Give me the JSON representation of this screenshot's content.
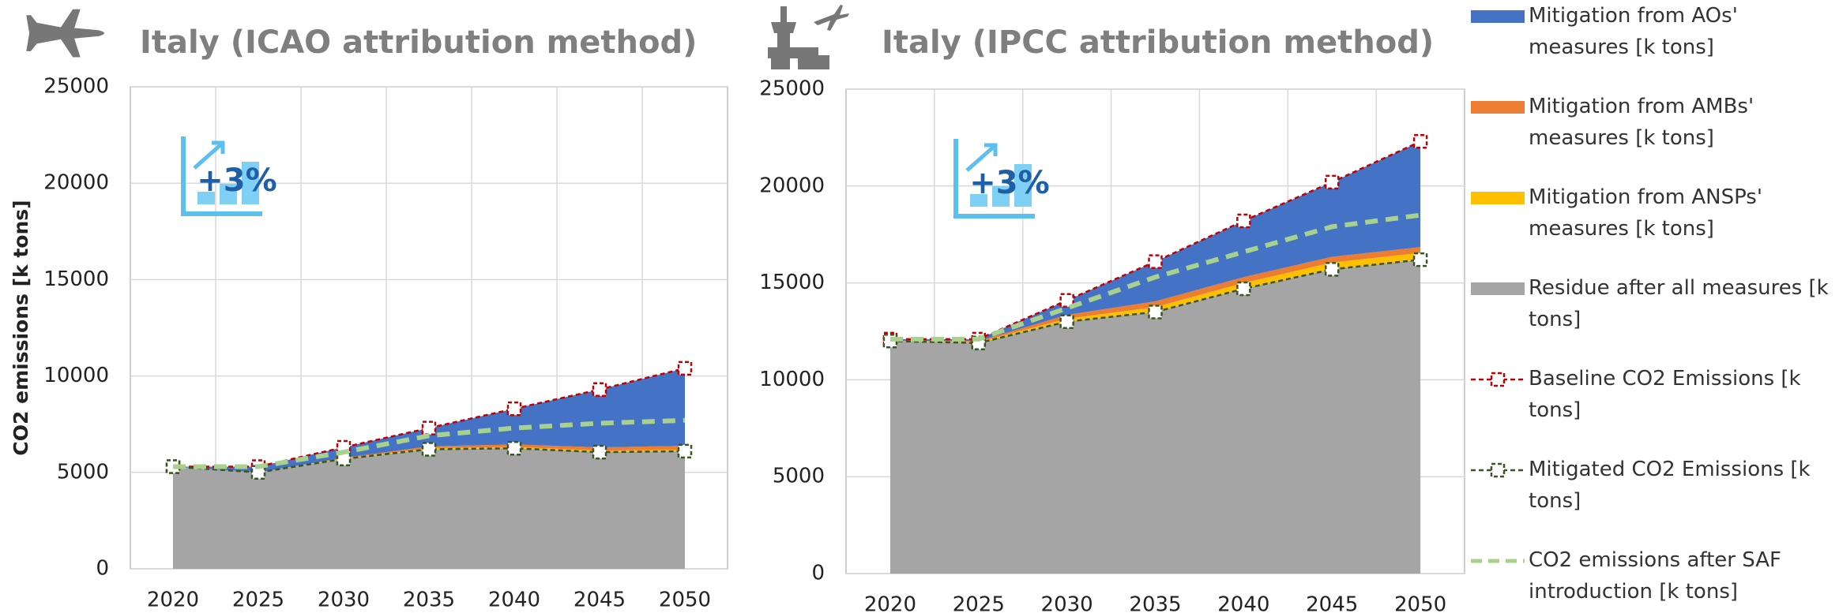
{
  "chart_data": [
    {
      "type": "area",
      "title": "Italy (ICAO attribution method)",
      "ylabel": "CO2 emissions [k tons]",
      "annotation": "+3%",
      "categories": [
        "2020",
        "2025",
        "2030",
        "2035",
        "2040",
        "2045",
        "2050"
      ],
      "ylim": [
        0,
        25000
      ],
      "yticks": [
        0,
        5000,
        10000,
        15000,
        20000,
        25000
      ],
      "grid": true,
      "series": [
        {
          "name": "Mitigation from AOs' measures [k tons]",
          "color": "#4472c4",
          "kind": "area",
          "values": [
            0,
            300,
            540,
            950,
            1850,
            3000,
            4020
          ]
        },
        {
          "name": "Mitigation from AMBs' measures [k tons]",
          "color": "#ed7d31",
          "kind": "area",
          "values": [
            0,
            0,
            30,
            90,
            130,
            170,
            200
          ]
        },
        {
          "name": "Mitigation from ANSPs' measures [k tons]",
          "color": "#ffc000",
          "kind": "area",
          "values": [
            0,
            0,
            30,
            60,
            70,
            80,
            80
          ]
        },
        {
          "name": "Residue after all measures [k tons]",
          "color": "#a5a5a5",
          "kind": "area",
          "values": [
            5300,
            5000,
            5700,
            6200,
            6250,
            6050,
            6100
          ]
        },
        {
          "name": "Baseline CO2 Emissions [k tons]",
          "color": "#c00000",
          "kind": "marker",
          "values": [
            5300,
            5300,
            6300,
            7300,
            8300,
            9300,
            10400
          ]
        },
        {
          "name": "Mitigated CO2 Emissions [k tons]",
          "color": "#375623",
          "kind": "marker",
          "values": [
            5300,
            5000,
            5700,
            6200,
            6250,
            6050,
            6100
          ]
        },
        {
          "name": "CO2 emissions after SAF introduction [k tons]",
          "color": "#a9d18e",
          "kind": "dash",
          "values": [
            5300,
            5300,
            6050,
            6900,
            7300,
            7550,
            7700
          ]
        }
      ]
    },
    {
      "type": "area",
      "title": "Italy (IPCC attribution method)",
      "annotation": "+3%",
      "categories": [
        "2020",
        "2025",
        "2030",
        "2035",
        "2040",
        "2045",
        "2050"
      ],
      "ylim": [
        0,
        25000
      ],
      "yticks": [
        0,
        5000,
        10000,
        15000,
        20000,
        25000
      ],
      "grid": true,
      "series": [
        {
          "color": "#4472c4",
          "kind": "area",
          "values": [
            100,
            100,
            750,
            2050,
            2900,
            3850,
            5450
          ]
        },
        {
          "color": "#ed7d31",
          "kind": "area",
          "values": [
            0,
            50,
            200,
            300,
            300,
            300,
            300
          ]
        },
        {
          "color": "#ffc000",
          "kind": "area",
          "values": [
            0,
            50,
            150,
            250,
            300,
            350,
            350
          ]
        },
        {
          "color": "#a5a5a5",
          "kind": "area",
          "values": [
            12000,
            11900,
            13000,
            13500,
            14700,
            15700,
            16200
          ]
        },
        {
          "color": "#c00000",
          "kind": "marker",
          "values": [
            12100,
            12100,
            14100,
            16100,
            18200,
            20200,
            22300
          ]
        },
        {
          "color": "#375623",
          "kind": "marker",
          "values": [
            12000,
            11900,
            13000,
            13500,
            14700,
            15700,
            16200
          ]
        },
        {
          "color": "#a9d18e",
          "kind": "dash",
          "values": [
            12100,
            12100,
            13700,
            15300,
            16600,
            17900,
            18500
          ]
        }
      ]
    }
  ]
}
